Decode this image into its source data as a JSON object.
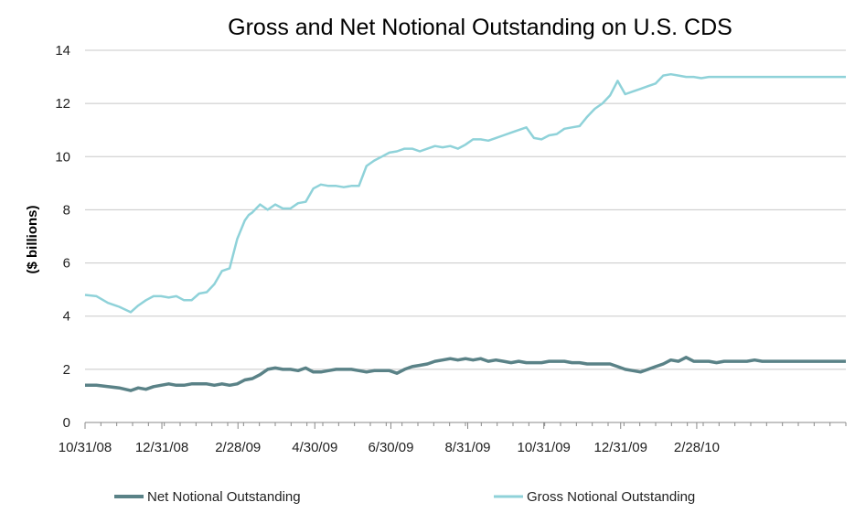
{
  "chart_data": {
    "type": "line",
    "title": "Gross and Net Notional Outstanding on U.S. CDS",
    "xlabel": "",
    "ylabel": "($ billions)",
    "ylim": [
      0,
      14
    ],
    "yticks": [
      0,
      2,
      4,
      6,
      8,
      10,
      12,
      14
    ],
    "xlim": [
      0,
      100
    ],
    "xticks": [
      {
        "label": "10/31/08",
        "x": 0
      },
      {
        "label": "12/31/08",
        "x": 10.1
      },
      {
        "label": "2/28/09",
        "x": 20.1
      },
      {
        "label": "4/30/09",
        "x": 30.2
      },
      {
        "label": "6/30/09",
        "x": 40.2
      },
      {
        "label": "8/31/09",
        "x": 50.3
      },
      {
        "label": "10/31/09",
        "x": 60.3
      },
      {
        "label": "12/31/09",
        "x": 70.4
      },
      {
        "label": "2/28/10",
        "x": 80.4
      }
    ],
    "grid": "horizontal",
    "legend_position": "bottom",
    "series": [
      {
        "name": "Net Notional Outstanding",
        "color": "#5a8287",
        "x": [
          0,
          1.5,
          3,
          4.5,
          6,
          7,
          8,
          9,
          10,
          11,
          12,
          13,
          14,
          15,
          16,
          17,
          18,
          19,
          20,
          21,
          22,
          23,
          24,
          25,
          26,
          27,
          28,
          29,
          30,
          31,
          32,
          33,
          34,
          35,
          36,
          37,
          38,
          39,
          40,
          41,
          42,
          43,
          44,
          45,
          46,
          47,
          48,
          49,
          50,
          51,
          52,
          53,
          54,
          55,
          56,
          57,
          58,
          59,
          60,
          61,
          62,
          63,
          64,
          65,
          66,
          67,
          68,
          69,
          70,
          71,
          72,
          73,
          74,
          75,
          76,
          77,
          78,
          79,
          80,
          81,
          82,
          83,
          84,
          85,
          86,
          87,
          88,
          89,
          90,
          91,
          92,
          93,
          94,
          95,
          96,
          97,
          98,
          99,
          100
        ],
        "values": [
          1.4,
          1.4,
          1.35,
          1.3,
          1.2,
          1.3,
          1.25,
          1.35,
          1.4,
          1.45,
          1.4,
          1.4,
          1.45,
          1.45,
          1.45,
          1.4,
          1.45,
          1.4,
          1.45,
          1.6,
          1.65,
          1.8,
          2.0,
          2.05,
          2.0,
          2.0,
          1.95,
          2.05,
          1.9,
          1.9,
          1.95,
          2.0,
          2.0,
          2.0,
          1.95,
          1.9,
          1.95,
          1.95,
          1.95,
          1.85,
          2.0,
          2.1,
          2.15,
          2.2,
          2.3,
          2.35,
          2.4,
          2.35,
          2.4,
          2.35,
          2.4,
          2.3,
          2.35,
          2.3,
          2.25,
          2.3,
          2.25,
          2.25,
          2.25,
          2.3,
          2.3,
          2.3,
          2.25,
          2.25,
          2.2,
          2.2,
          2.2,
          2.2,
          2.1,
          2.0,
          1.95,
          1.9,
          2.0,
          2.1,
          2.2,
          2.35,
          2.3,
          2.45,
          2.3,
          2.3,
          2.3,
          2.25,
          2.3,
          2.3,
          2.3,
          2.3,
          2.35,
          2.3,
          2.3,
          2.3,
          2.3,
          2.3,
          2.3,
          2.3,
          2.3,
          2.3,
          2.3,
          2.3,
          2.3
        ]
      },
      {
        "name": "Gross Notional Outstanding",
        "color": "#8fd2d9",
        "x": [
          0,
          1.5,
          3,
          4.5,
          6,
          7,
          8,
          9,
          10,
          11,
          12,
          13,
          14,
          15,
          16,
          17,
          18,
          19,
          20,
          21,
          21.5,
          22,
          23,
          24,
          25,
          26,
          27,
          28,
          29,
          30,
          31,
          32,
          33,
          34,
          35,
          36,
          37,
          38,
          39,
          40,
          41,
          42,
          43,
          44,
          45,
          46,
          47,
          48,
          49,
          50,
          51,
          52,
          53,
          54,
          55,
          56,
          57,
          58,
          59,
          60,
          61,
          62,
          63,
          64,
          65,
          66,
          67,
          68,
          69,
          70,
          71,
          72,
          73,
          74,
          75,
          76,
          77,
          78,
          79,
          80,
          81,
          82,
          83,
          84,
          85,
          86,
          87,
          88,
          89,
          90,
          91,
          92,
          93,
          94,
          95,
          96,
          97,
          98,
          99,
          100
        ],
        "values": [
          4.8,
          4.75,
          4.5,
          4.35,
          4.15,
          4.4,
          4.6,
          4.75,
          4.75,
          4.7,
          4.75,
          4.6,
          4.6,
          4.85,
          4.9,
          5.2,
          5.7,
          5.8,
          6.9,
          7.6,
          7.8,
          7.9,
          8.2,
          8.0,
          8.2,
          8.05,
          8.05,
          8.25,
          8.3,
          8.8,
          8.95,
          8.9,
          8.9,
          8.85,
          8.9,
          8.9,
          9.65,
          9.85,
          10.0,
          10.15,
          10.2,
          10.3,
          10.3,
          10.2,
          10.3,
          10.4,
          10.35,
          10.4,
          10.3,
          10.45,
          10.65,
          10.65,
          10.6,
          10.7,
          10.8,
          10.9,
          11.0,
          11.1,
          10.7,
          10.65,
          10.8,
          10.85,
          11.05,
          11.1,
          11.15,
          11.5,
          11.8,
          12.0,
          12.3,
          12.85,
          12.35,
          12.45,
          12.55,
          12.65,
          12.75,
          13.05,
          13.1,
          13.05,
          13.0,
          13.0,
          12.95,
          13.0,
          13.0,
          13.0,
          13.0,
          13.0,
          13.0,
          13.0,
          13.0,
          13.0,
          13.0,
          13.0,
          13.0,
          13.0,
          13.0,
          13.0,
          13.0,
          13.0,
          13.0,
          13.0
        ]
      }
    ]
  }
}
